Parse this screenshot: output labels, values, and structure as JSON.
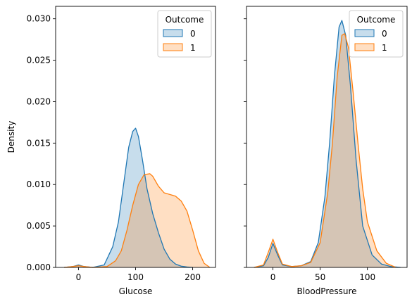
{
  "chart_data": [
    {
      "type": "area",
      "xlabel": "Glucose",
      "ylabel": "Density",
      "xlim": [
        -40,
        240
      ],
      "ylim": [
        0,
        0.0315
      ],
      "xticks": [
        0,
        100,
        200
      ],
      "yticks": [
        0.0,
        0.005,
        0.01,
        0.015,
        0.02,
        0.025,
        0.03
      ],
      "ytick_labels": [
        "0.000",
        "0.005",
        "0.010",
        "0.015",
        "0.020",
        "0.025",
        "0.030"
      ],
      "legend": {
        "title": "Outcome",
        "placement": "top-right"
      },
      "series": [
        {
          "name": "0",
          "line_color": "#1f77b4",
          "fill_color": "#1f77b4",
          "x": [
            -25,
            -10,
            0,
            10,
            25,
            45,
            60,
            70,
            80,
            88,
            95,
            100,
            105,
            112,
            120,
            130,
            140,
            150,
            160,
            170,
            180,
            190,
            200
          ],
          "y": [
            0,
            0.0001,
            0.0003,
            0.0001,
            0,
            0.0003,
            0.0025,
            0.0055,
            0.0105,
            0.0145,
            0.0164,
            0.0168,
            0.0158,
            0.013,
            0.0095,
            0.0065,
            0.0042,
            0.0022,
            0.001,
            0.0004,
            0.00015,
            5e-05,
            0
          ]
        },
        {
          "name": "1",
          "line_color": "#ff7f0e",
          "fill_color": "#ff7f0e",
          "x": [
            -25,
            -10,
            0,
            10,
            25,
            50,
            65,
            75,
            85,
            95,
            105,
            115,
            125,
            130,
            140,
            150,
            160,
            170,
            180,
            190,
            200,
            210,
            220,
            230
          ],
          "y": [
            0,
            0.0001,
            0.0002,
            0.0001,
            0,
            0.0001,
            0.0008,
            0.002,
            0.0045,
            0.0075,
            0.01,
            0.0112,
            0.0113,
            0.011,
            0.0098,
            0.009,
            0.0088,
            0.0086,
            0.008,
            0.0068,
            0.0045,
            0.002,
            0.0005,
            0
          ]
        }
      ]
    },
    {
      "type": "area",
      "xlabel": "BloodPressure",
      "ylabel": "",
      "xlim": [
        -28,
        142
      ],
      "ylim": [
        0,
        0.0315
      ],
      "xticks": [
        0,
        50,
        100
      ],
      "yticks": [
        0.0,
        0.005,
        0.01,
        0.015,
        0.02,
        0.025,
        0.03
      ],
      "legend": {
        "title": "Outcome",
        "placement": "top-right"
      },
      "series": [
        {
          "name": "0",
          "line_color": "#1f77b4",
          "fill_color": "#1f77b4",
          "x": [
            -20,
            -10,
            -5,
            0,
            5,
            10,
            20,
            30,
            40,
            48,
            55,
            60,
            65,
            70,
            73,
            77,
            82,
            88,
            95,
            105,
            115,
            125,
            135
          ],
          "y": [
            0,
            0.0002,
            0.0012,
            0.0029,
            0.0015,
            0.0003,
            0.0001,
            0.0002,
            0.0007,
            0.003,
            0.0085,
            0.015,
            0.023,
            0.029,
            0.0298,
            0.028,
            0.022,
            0.013,
            0.005,
            0.0015,
            0.0004,
            0.0001,
            0
          ]
        },
        {
          "name": "1",
          "line_color": "#ff7f0e",
          "fill_color": "#ff7f0e",
          "x": [
            -20,
            -10,
            -5,
            0,
            5,
            10,
            20,
            30,
            40,
            50,
            58,
            63,
            68,
            73,
            76,
            80,
            85,
            90,
            95,
            100,
            110,
            120,
            130
          ],
          "y": [
            0,
            0.0003,
            0.0018,
            0.0034,
            0.0018,
            0.0004,
            0.0001,
            0.0002,
            0.0006,
            0.003,
            0.009,
            0.015,
            0.023,
            0.028,
            0.0282,
            0.0265,
            0.021,
            0.015,
            0.0095,
            0.0055,
            0.002,
            0.0005,
            0
          ]
        }
      ]
    }
  ]
}
